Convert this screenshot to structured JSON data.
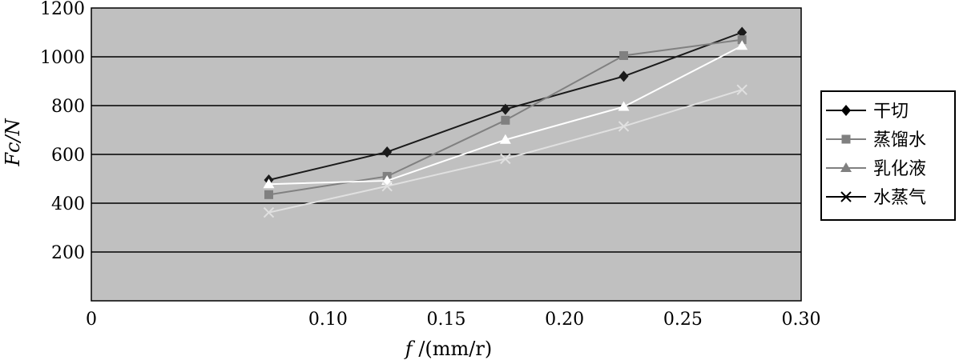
{
  "chart_data": {
    "type": "line",
    "title": "",
    "xlabel": "f /(mm/r)",
    "ylabel": "Fc/N",
    "xlim": [
      0,
      0.3
    ],
    "ylim": [
      0,
      1200
    ],
    "x_ticks": [
      "0",
      "0.10",
      "0.15",
      "0.20",
      "0.25",
      "0.30"
    ],
    "y_ticks": [
      "200",
      "400",
      "600",
      "800",
      "1000",
      "1200"
    ],
    "grid": "horizontal",
    "legend_position": "right",
    "x": [
      0.075,
      0.125,
      0.175,
      0.225,
      0.275
    ],
    "series": [
      {
        "name": "干切",
        "values": [
          495,
          610,
          785,
          920,
          1100
        ],
        "color": "#1a1a1a",
        "marker": "diamond"
      },
      {
        "name": "蒸馏水",
        "values": [
          435,
          510,
          740,
          1005,
          1070
        ],
        "color": "#808080",
        "marker": "square"
      },
      {
        "name": "乳化液",
        "values": [
          478,
          492,
          660,
          795,
          1045
        ],
        "color": "#ffffff",
        "marker": "triangle"
      },
      {
        "name": "水蒸气",
        "values": [
          362,
          470,
          582,
          715,
          865
        ],
        "color": "#e0e0e0",
        "marker": "x"
      }
    ],
    "plot_background": "#c0c0c0"
  }
}
